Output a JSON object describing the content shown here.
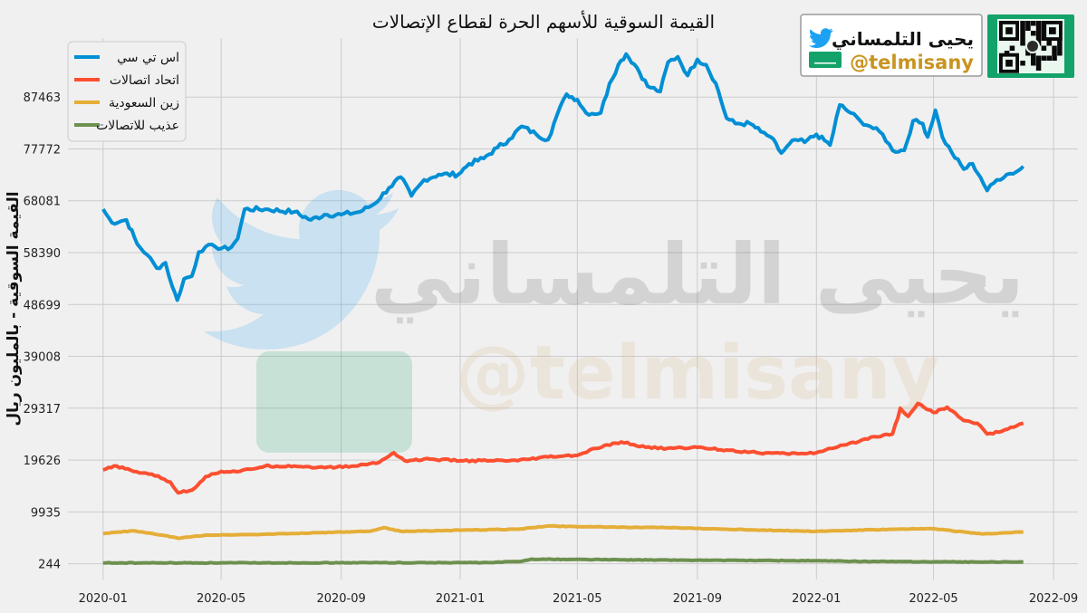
{
  "branding": {
    "name": "يحيى التلمساني",
    "handle": "@telmisany",
    "icons": [
      "twitter-bird-icon",
      "saudi-flag-icon",
      "qr-code-icon"
    ]
  },
  "watermark": {
    "name": "يحيى التلمساني",
    "handle": "@telmisany"
  },
  "colors": {
    "background": "#f0f0f0",
    "grid": "#cbcbcb",
    "stc": "#008fd5",
    "etihad": "#fc4f30",
    "zain": "#e5ae38",
    "atheeb": "#6d904f",
    "brand_green": "#13a36a"
  },
  "chart_data": {
    "type": "line",
    "title": "القيمة السوقية للأسهم الحرة لقطاع الإتصالات",
    "xlabel": "",
    "ylabel": "القيمة السوقية - بالمليون ريال",
    "x_ticks": [
      "2020-01",
      "2020-05",
      "2020-09",
      "2021-01",
      "2021-05",
      "2021-09",
      "2022-01",
      "2022-05",
      "2022-09"
    ],
    "y_ticks": [
      244,
      9935,
      19626,
      29317,
      39008,
      48699,
      58390,
      68081,
      77772,
      87463
    ],
    "xlim": [
      "2019-11-26",
      "2022-09-26"
    ],
    "ylim": [
      -2700,
      98500
    ],
    "grid": true,
    "legend_position": "top-left",
    "series": [
      {
        "name": "اس تي سي",
        "key": "stc",
        "points": [
          [
            "2020-01-01",
            66500
          ],
          [
            "2020-01-10",
            64000
          ],
          [
            "2020-01-25",
            64500
          ],
          [
            "2020-02-05",
            60000
          ],
          [
            "2020-02-15",
            58000
          ],
          [
            "2020-02-25",
            55500
          ],
          [
            "2020-03-05",
            56500
          ],
          [
            "2020-03-12",
            52000
          ],
          [
            "2020-03-17",
            49500
          ],
          [
            "2020-03-24",
            53500
          ],
          [
            "2020-04-01",
            54000
          ],
          [
            "2020-04-08",
            58500
          ],
          [
            "2020-04-15",
            59500
          ],
          [
            "2020-04-25",
            59500
          ],
          [
            "2020-05-08",
            59000
          ],
          [
            "2020-05-18",
            61000
          ],
          [
            "2020-05-25",
            66500
          ],
          [
            "2020-06-15",
            66500
          ],
          [
            "2020-07-15",
            66000
          ],
          [
            "2020-08-01",
            64500
          ],
          [
            "2020-08-15",
            65500
          ],
          [
            "2020-09-01",
            65500
          ],
          [
            "2020-09-20",
            66000
          ],
          [
            "2020-10-05",
            67500
          ],
          [
            "2020-10-20",
            70500
          ],
          [
            "2020-11-01",
            72500
          ],
          [
            "2020-11-12",
            69000
          ],
          [
            "2020-11-25",
            72000
          ],
          [
            "2020-12-10",
            73000
          ],
          [
            "2020-12-30",
            73000
          ],
          [
            "2021-01-10",
            75000
          ],
          [
            "2021-01-25",
            76000
          ],
          [
            "2021-02-08",
            78000
          ],
          [
            "2021-02-20",
            79500
          ],
          [
            "2021-03-05",
            82000
          ],
          [
            "2021-03-20",
            80500
          ],
          [
            "2021-04-01",
            79500
          ],
          [
            "2021-04-10",
            84000
          ],
          [
            "2021-04-20",
            88000
          ],
          [
            "2021-05-01",
            87000
          ],
          [
            "2021-05-10",
            84500
          ],
          [
            "2021-05-25",
            84500
          ],
          [
            "2021-06-03",
            90000
          ],
          [
            "2021-06-12",
            93500
          ],
          [
            "2021-06-20",
            95500
          ],
          [
            "2021-07-01",
            93000
          ],
          [
            "2021-07-12",
            89500
          ],
          [
            "2021-07-25",
            88500
          ],
          [
            "2021-08-02",
            94000
          ],
          [
            "2021-08-12",
            95000
          ],
          [
            "2021-08-22",
            91500
          ],
          [
            "2021-09-01",
            94500
          ],
          [
            "2021-09-10",
            93500
          ],
          [
            "2021-09-20",
            90000
          ],
          [
            "2021-10-01",
            83500
          ],
          [
            "2021-10-10",
            82500
          ],
          [
            "2021-10-25",
            82500
          ],
          [
            "2021-11-05",
            81000
          ],
          [
            "2021-11-15",
            80000
          ],
          [
            "2021-11-26",
            77000
          ],
          [
            "2021-12-10",
            79500
          ],
          [
            "2021-12-20",
            79000
          ],
          [
            "2022-01-01",
            80500
          ],
          [
            "2022-01-15",
            78500
          ],
          [
            "2022-01-25",
            86000
          ],
          [
            "2022-02-05",
            84500
          ],
          [
            "2022-02-15",
            83000
          ],
          [
            "2022-02-25",
            82000
          ],
          [
            "2022-03-10",
            80500
          ],
          [
            "2022-03-20",
            77500
          ],
          [
            "2022-04-01",
            77500
          ],
          [
            "2022-04-10",
            83000
          ],
          [
            "2022-04-20",
            82500
          ],
          [
            "2022-04-25",
            80000
          ],
          [
            "2022-05-03",
            85000
          ],
          [
            "2022-05-10",
            80000
          ],
          [
            "2022-05-20",
            77000
          ],
          [
            "2022-06-01",
            74000
          ],
          [
            "2022-06-10",
            75000
          ],
          [
            "2022-06-18",
            72500
          ],
          [
            "2022-06-25",
            70000
          ],
          [
            "2022-07-05",
            72000
          ],
          [
            "2022-07-15",
            73000
          ],
          [
            "2022-07-25",
            73500
          ],
          [
            "2022-08-01",
            74500
          ]
        ]
      },
      {
        "name": "اتحاد اتصالات",
        "key": "etihad",
        "points": [
          [
            "2020-01-01",
            17800
          ],
          [
            "2020-01-15",
            18500
          ],
          [
            "2020-02-01",
            17500
          ],
          [
            "2020-02-20",
            17000
          ],
          [
            "2020-03-10",
            15500
          ],
          [
            "2020-03-18",
            13500
          ],
          [
            "2020-04-01",
            14000
          ],
          [
            "2020-04-15",
            16500
          ],
          [
            "2020-05-01",
            17500
          ],
          [
            "2020-05-20",
            17500
          ],
          [
            "2020-06-15",
            18500
          ],
          [
            "2020-07-15",
            18500
          ],
          [
            "2020-08-15",
            18200
          ],
          [
            "2020-09-15",
            18500
          ],
          [
            "2020-10-10",
            19200
          ],
          [
            "2020-10-25",
            21000
          ],
          [
            "2020-11-05",
            19500
          ],
          [
            "2020-12-01",
            19800
          ],
          [
            "2021-01-01",
            19500
          ],
          [
            "2021-02-01",
            19500
          ],
          [
            "2021-03-01",
            19500
          ],
          [
            "2021-04-01",
            20200
          ],
          [
            "2021-05-01",
            20500
          ],
          [
            "2021-05-20",
            21800
          ],
          [
            "2021-06-15",
            23000
          ],
          [
            "2021-07-10",
            22000
          ],
          [
            "2021-08-01",
            21800
          ],
          [
            "2021-09-01",
            22000
          ],
          [
            "2021-10-01",
            21500
          ],
          [
            "2021-11-01",
            21000
          ],
          [
            "2021-12-01",
            20800
          ],
          [
            "2022-01-01",
            21000
          ],
          [
            "2022-02-01",
            22500
          ],
          [
            "2022-03-01",
            24000
          ],
          [
            "2022-03-20",
            24500
          ],
          [
            "2022-03-28",
            29300
          ],
          [
            "2022-04-05",
            27800
          ],
          [
            "2022-04-15",
            30200
          ],
          [
            "2022-05-01",
            28500
          ],
          [
            "2022-05-15",
            29500
          ],
          [
            "2022-06-01",
            27000
          ],
          [
            "2022-06-15",
            26500
          ],
          [
            "2022-06-25",
            24500
          ],
          [
            "2022-07-10",
            25000
          ],
          [
            "2022-07-25",
            26000
          ],
          [
            "2022-08-01",
            26500
          ]
        ]
      },
      {
        "name": "زين السعودية",
        "key": "zain",
        "points": [
          [
            "2020-01-01",
            5900
          ],
          [
            "2020-02-01",
            6400
          ],
          [
            "2020-03-01",
            5600
          ],
          [
            "2020-03-18",
            5000
          ],
          [
            "2020-04-15",
            5600
          ],
          [
            "2020-06-01",
            5700
          ],
          [
            "2020-08-01",
            6000
          ],
          [
            "2020-10-01",
            6300
          ],
          [
            "2020-10-15",
            7000
          ],
          [
            "2020-11-01",
            6300
          ],
          [
            "2021-01-01",
            6500
          ],
          [
            "2021-03-01",
            6700
          ],
          [
            "2021-04-01",
            7300
          ],
          [
            "2021-06-01",
            7100
          ],
          [
            "2021-08-01",
            7000
          ],
          [
            "2021-10-01",
            6700
          ],
          [
            "2022-01-01",
            6300
          ],
          [
            "2022-03-01",
            6600
          ],
          [
            "2022-05-01",
            6800
          ],
          [
            "2022-06-20",
            5800
          ],
          [
            "2022-08-01",
            6200
          ]
        ]
      },
      {
        "name": "عذيب للاتصالات",
        "key": "atheeb",
        "points": [
          [
            "2020-01-01",
            400
          ],
          [
            "2020-06-01",
            400
          ],
          [
            "2020-12-01",
            450
          ],
          [
            "2021-02-01",
            450
          ],
          [
            "2021-03-05",
            700
          ],
          [
            "2021-03-15",
            1100
          ],
          [
            "2021-06-01",
            1000
          ],
          [
            "2021-09-01",
            900
          ],
          [
            "2022-01-01",
            800
          ],
          [
            "2022-02-01",
            700
          ],
          [
            "2022-05-01",
            600
          ],
          [
            "2022-08-01",
            550
          ]
        ]
      }
    ]
  }
}
